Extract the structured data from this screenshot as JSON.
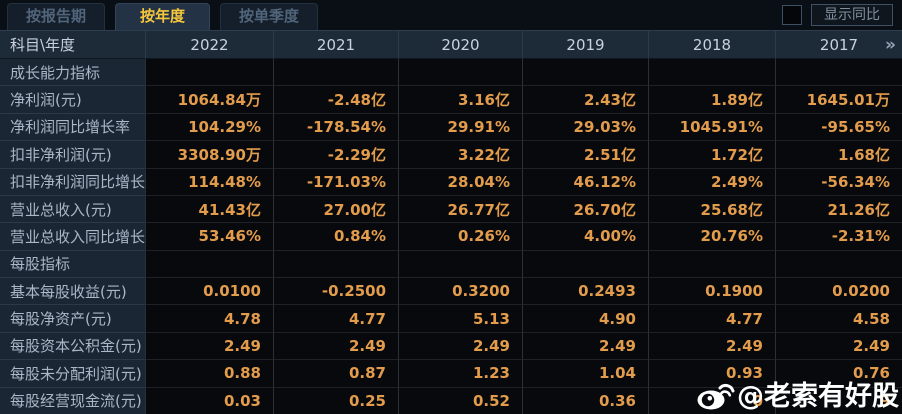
{
  "tabs": [
    {
      "label": "按报告期",
      "active": false
    },
    {
      "label": "按年度",
      "active": true
    },
    {
      "label": "按单季度",
      "active": false
    }
  ],
  "controls": {
    "show_yoy_label": "显示同比",
    "checkbox_checked": false
  },
  "table": {
    "corner_header": "科目\\年度",
    "years": [
      "2022",
      "2021",
      "2020",
      "2019",
      "2018",
      "2017"
    ],
    "more_icon": "»",
    "rows": [
      {
        "type": "section",
        "label": "成长能力指标",
        "values": [
          "",
          "",
          "",
          "",
          "",
          ""
        ]
      },
      {
        "type": "data",
        "highlight": true,
        "label": "净利润(元)",
        "values": [
          "1064.84万",
          "-2.48亿",
          "3.16亿",
          "2.43亿",
          "1.89亿",
          "1645.01万"
        ]
      },
      {
        "type": "data",
        "label": "净利润同比增长率",
        "values": [
          "104.29%",
          "-178.54%",
          "29.91%",
          "29.03%",
          "1045.91%",
          "-95.65%"
        ]
      },
      {
        "type": "data",
        "label": "扣非净利润(元)",
        "values": [
          "3308.90万",
          "-2.29亿",
          "3.22亿",
          "2.51亿",
          "1.72亿",
          "1.68亿"
        ]
      },
      {
        "type": "data",
        "label": "扣非净利润同比增长率",
        "values": [
          "114.48%",
          "-171.03%",
          "28.04%",
          "46.12%",
          "2.49%",
          "-56.34%"
        ]
      },
      {
        "type": "data",
        "label": "营业总收入(元)",
        "values": [
          "41.43亿",
          "27.00亿",
          "26.77亿",
          "26.70亿",
          "25.68亿",
          "21.26亿"
        ]
      },
      {
        "type": "data",
        "label": "营业总收入同比增长率",
        "values": [
          "53.46%",
          "0.84%",
          "0.26%",
          "4.00%",
          "20.76%",
          "-2.31%"
        ]
      },
      {
        "type": "section",
        "label": "每股指标",
        "values": [
          "",
          "",
          "",
          "",
          "",
          ""
        ]
      },
      {
        "type": "data",
        "label": "基本每股收益(元)",
        "values": [
          "0.0100",
          "-0.2500",
          "0.3200",
          "0.2493",
          "0.1900",
          "0.0200"
        ]
      },
      {
        "type": "data",
        "label": "每股净资产(元)",
        "values": [
          "4.78",
          "4.77",
          "5.13",
          "4.90",
          "4.77",
          "4.58"
        ]
      },
      {
        "type": "data",
        "label": "每股资本公积金(元)",
        "values": [
          "2.49",
          "2.49",
          "2.49",
          "2.49",
          "2.49",
          "2.49"
        ]
      },
      {
        "type": "data",
        "label": "每股未分配利润(元)",
        "values": [
          "0.88",
          "0.87",
          "1.23",
          "1.04",
          "0.93",
          "0.76"
        ]
      },
      {
        "type": "data",
        "label": "每股经营现金流(元)",
        "values": [
          "0.03",
          "0.25",
          "0.52",
          "0.36",
          "0",
          "9"
        ]
      }
    ]
  },
  "watermark": {
    "text": "@老索有好股",
    "icon": "weibo-icon"
  },
  "colors": {
    "active_tab_text": "#f6c63d",
    "value_orange": "#e39c4c",
    "highlight_gold": "#f2c155",
    "label_column_bg": "#1a2634",
    "highlight_label_bg": "#35495e",
    "highlight_row_bg": "#1c2939",
    "header_bg": "#1d2a38"
  }
}
